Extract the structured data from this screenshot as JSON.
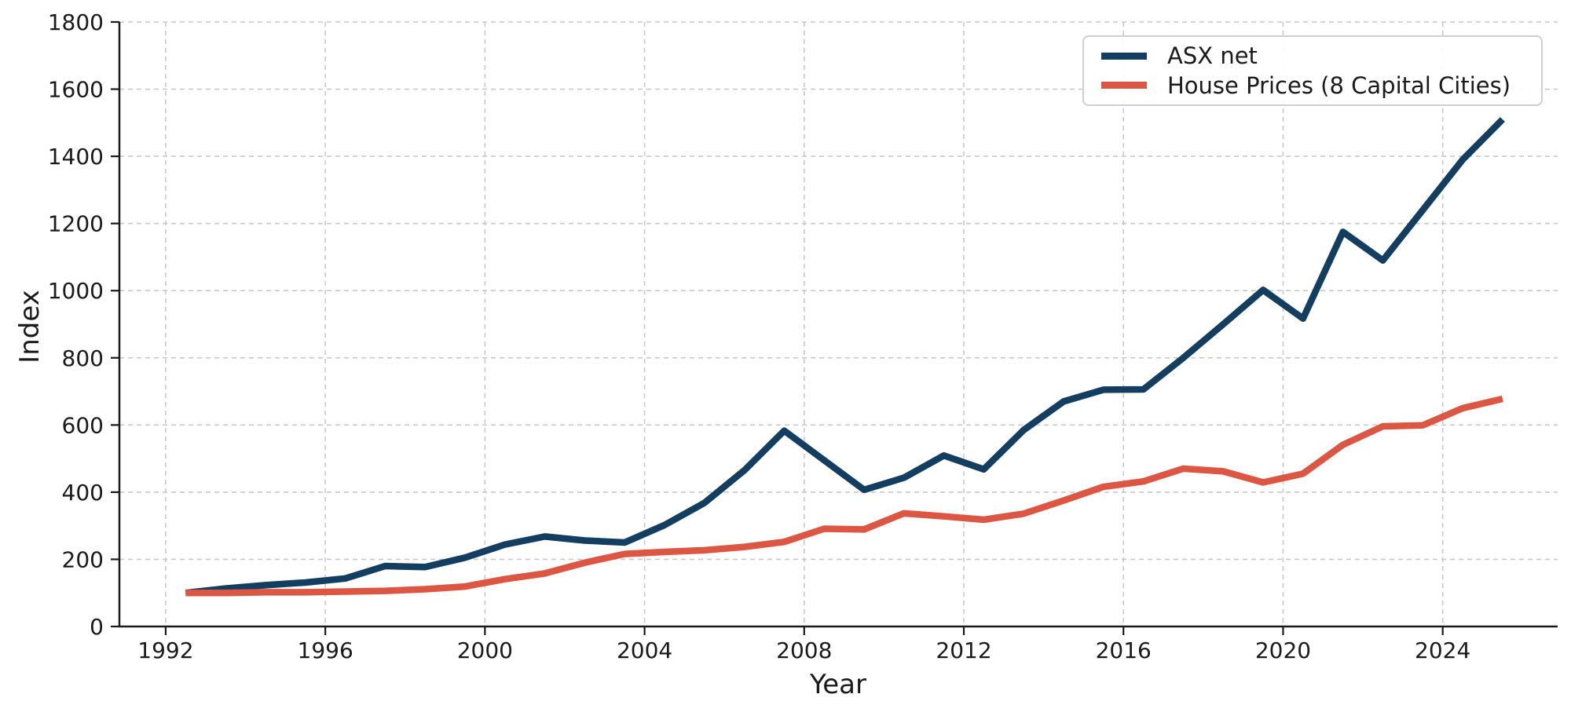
{
  "colors": {
    "background": "#ffffff",
    "grid": "#c9c9c9",
    "spine": "#1a1a1a",
    "text": "#1a1a1a",
    "legend_border": "#cfcfcf",
    "asx_line": "#143e5f",
    "house_line": "#dc5743"
  },
  "chart_data": {
    "type": "line",
    "title": "",
    "xlabel": "Year",
    "ylabel": "Index",
    "grid": "dashed",
    "legend_position": "upper right",
    "xlim": [
      1990.84,
      2026.88
    ],
    "ylim": [
      0,
      1800
    ],
    "xticks": [
      1992,
      1996,
      2000,
      2004,
      2008,
      2012,
      2016,
      2020,
      2024
    ],
    "yticks": [
      0,
      200,
      400,
      600,
      800,
      1000,
      1200,
      1400,
      1600,
      1800
    ],
    "x": [
      1992.5,
      1993.5,
      1994.5,
      1995.5,
      1996.5,
      1997.5,
      1998.5,
      1999.5,
      2000.5,
      2001.5,
      2002.5,
      2003.5,
      2004.5,
      2005.5,
      2006.5,
      2007.5,
      2008.5,
      2009.5,
      2010.5,
      2011.5,
      2012.5,
      2013.5,
      2014.5,
      2015.5,
      2016.5,
      2017.5,
      2018.5,
      2019.5,
      2020.5,
      2021.5,
      2022.5,
      2023.5,
      2024.5,
      2025.5
    ],
    "series": [
      {
        "name": "ASX net",
        "color": "#143e5f",
        "values": [
          100,
          113,
          123,
          131,
          143,
          180,
          177,
          205,
          244,
          268,
          256,
          250,
          302,
          368,
          465,
          583,
          495,
          407,
          443,
          509,
          468,
          585,
          670,
          705,
          706,
          800,
          900,
          1002,
          917,
          1175,
          1090,
          1240,
          1390,
          1510
        ]
      },
      {
        "name": "House Prices (8 Capital Cities)",
        "color": "#dc5743",
        "values": [
          100,
          100,
          102,
          102,
          104,
          106,
          111,
          119,
          141,
          158,
          190,
          216,
          222,
          227,
          237,
          252,
          291,
          289,
          337,
          328,
          318,
          336,
          375,
          416,
          432,
          470,
          462,
          429,
          455,
          541,
          596,
          599,
          650,
          678
        ]
      }
    ]
  }
}
